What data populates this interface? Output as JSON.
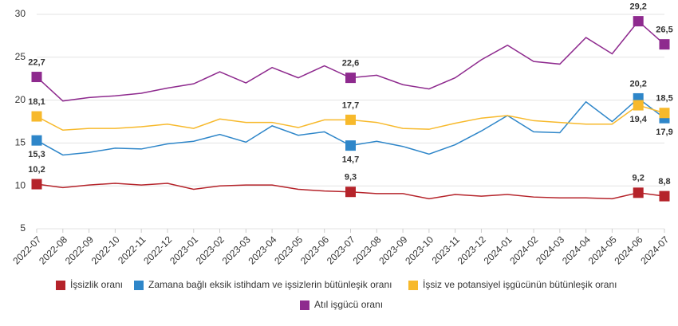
{
  "chart_data": {
    "type": "line",
    "categories": [
      "2022-07",
      "2022-08",
      "2022-09",
      "2022-10",
      "2022-11",
      "2022-12",
      "2023-01",
      "2023-02",
      "2023-03",
      "2023-04",
      "2023-05",
      "2023-06",
      "2023-07",
      "2023-08",
      "2023-09",
      "2023-10",
      "2023-11",
      "2023-12",
      "2024-01",
      "2024-02",
      "2024-03",
      "2024-04",
      "2024-05",
      "2024-06",
      "2024-07"
    ],
    "ylim": [
      5,
      30
    ],
    "yticks": [
      5,
      10,
      15,
      20,
      25,
      30
    ],
    "grid": true,
    "series": [
      {
        "name": "İşsizlik oranı",
        "color": "#b5232a",
        "values": [
          10.2,
          9.8,
          10.1,
          10.3,
          10.1,
          10.3,
          9.6,
          10.0,
          10.1,
          10.1,
          9.6,
          9.4,
          9.3,
          9.1,
          9.1,
          8.5,
          9.0,
          8.8,
          9.0,
          8.7,
          8.6,
          8.6,
          8.5,
          9.2,
          8.8
        ],
        "value_labels": [
          "10,2",
          null,
          null,
          null,
          null,
          null,
          null,
          null,
          null,
          null,
          null,
          null,
          "9,3",
          null,
          null,
          null,
          null,
          null,
          null,
          null,
          null,
          null,
          null,
          "9,2",
          "8,8"
        ]
      },
      {
        "name": "Zamana bağlı eksik istihdam ve işsizlerin bütünleşik oranı",
        "color": "#2e86c9",
        "values": [
          15.3,
          13.6,
          13.9,
          14.4,
          14.3,
          14.9,
          15.2,
          16.0,
          15.1,
          17.0,
          15.9,
          16.3,
          14.7,
          15.2,
          14.6,
          13.7,
          14.8,
          16.4,
          18.2,
          16.3,
          16.2,
          19.8,
          17.5,
          20.2,
          17.9
        ],
        "value_labels": [
          "15,3",
          null,
          null,
          null,
          null,
          null,
          null,
          null,
          null,
          null,
          null,
          null,
          "14,7",
          null,
          null,
          null,
          null,
          null,
          null,
          null,
          null,
          null,
          null,
          "20,2",
          "17,9"
        ]
      },
      {
        "name": "İşsiz ve potansiyel işgücünün bütünleşik oranı",
        "color": "#f7b92b",
        "values": [
          18.1,
          16.5,
          16.7,
          16.7,
          16.9,
          17.2,
          16.7,
          17.8,
          17.4,
          17.4,
          16.8,
          17.7,
          17.7,
          17.4,
          16.7,
          16.6,
          17.3,
          17.9,
          18.2,
          17.6,
          17.4,
          17.2,
          17.2,
          19.4,
          18.5
        ],
        "value_labels": [
          "18,1",
          null,
          null,
          null,
          null,
          null,
          null,
          null,
          null,
          null,
          null,
          null,
          "17,7",
          null,
          null,
          null,
          null,
          null,
          null,
          null,
          null,
          null,
          null,
          "19,4",
          "18,5"
        ]
      },
      {
        "name": "Atıl işgücü oranı",
        "color": "#8e2a8e",
        "values": [
          22.7,
          19.9,
          20.3,
          20.5,
          20.8,
          21.4,
          21.9,
          23.3,
          22.0,
          23.8,
          22.6,
          24.0,
          22.6,
          22.9,
          21.8,
          21.3,
          22.6,
          24.7,
          26.4,
          24.5,
          24.2,
          27.3,
          25.4,
          29.2,
          26.5
        ],
        "value_labels": [
          "22,7",
          null,
          null,
          null,
          null,
          null,
          null,
          null,
          null,
          null,
          null,
          null,
          "22,6",
          null,
          null,
          null,
          null,
          null,
          null,
          null,
          null,
          null,
          null,
          "29,2",
          "26,5"
        ]
      }
    ]
  }
}
